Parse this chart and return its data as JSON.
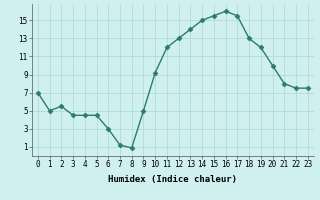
{
  "x": [
    0,
    1,
    2,
    3,
    4,
    5,
    6,
    7,
    8,
    9,
    10,
    11,
    12,
    13,
    14,
    15,
    16,
    17,
    18,
    19,
    20,
    21,
    22,
    23
  ],
  "y": [
    7,
    5,
    5.5,
    4.5,
    4.5,
    4.5,
    3,
    1.2,
    0.9,
    5,
    9.2,
    12,
    13,
    14,
    15,
    15.5,
    16,
    15.5,
    13,
    12,
    10,
    8,
    7.5,
    7.5
  ],
  "line_color": "#2d7a6e",
  "marker": "D",
  "marker_size": 2.5,
  "linewidth": 1.0,
  "background_color": "#cff0ef",
  "grid_color": "#aad8d5",
  "xlabel": "Humidex (Indice chaleur)",
  "xlabel_fontsize": 6.5,
  "ylabel_ticks": [
    1,
    3,
    5,
    7,
    9,
    11,
    13,
    15
  ],
  "xtick_labels": [
    "0",
    "1",
    "2",
    "3",
    "4",
    "5",
    "6",
    "7",
    "8",
    "9",
    "10",
    "11",
    "12",
    "13",
    "14",
    "15",
    "16",
    "17",
    "18",
    "19",
    "20",
    "21",
    "22",
    "23"
  ],
  "xlim": [
    -0.5,
    23.5
  ],
  "ylim": [
    0.0,
    16.8
  ],
  "tick_fontsize": 5.5
}
